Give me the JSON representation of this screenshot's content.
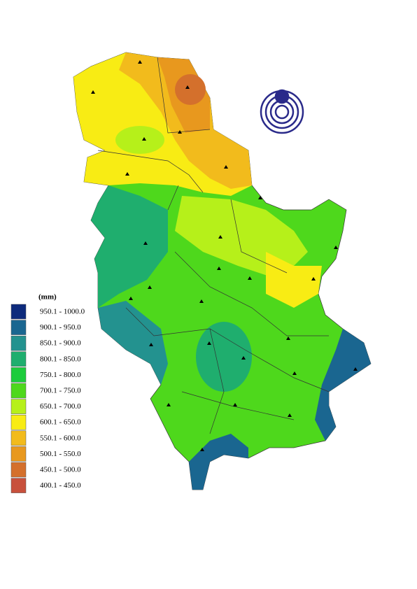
{
  "legend": {
    "unit": "(mm)",
    "items": [
      {
        "label": "950.1 - 1000.0",
        "color": "#0d2a7c"
      },
      {
        "label": "900.1 - 950.0",
        "color": "#1a6690"
      },
      {
        "label": "850.1 - 900.0",
        "color": "#23928f"
      },
      {
        "label": "800.1 - 850.0",
        "color": "#1fae6e"
      },
      {
        "label": "750.1 - 800.0",
        "color": "#1ccc3c"
      },
      {
        "label": "700.1 - 750.0",
        "color": "#4ed81c"
      },
      {
        "label": "650.1 - 700.0",
        "color": "#b6f01a"
      },
      {
        "label": "600.1 - 650.0",
        "color": "#f8ec14"
      },
      {
        "label": "550.1 - 600.0",
        "color": "#f2bb1c"
      },
      {
        "label": "500.1 - 550.0",
        "color": "#e8981e"
      },
      {
        "label": "450.1 - 500.0",
        "color": "#d4702c"
      },
      {
        "label": "400.1 - 450.0",
        "color": "#c8503c"
      }
    ]
  }
}
